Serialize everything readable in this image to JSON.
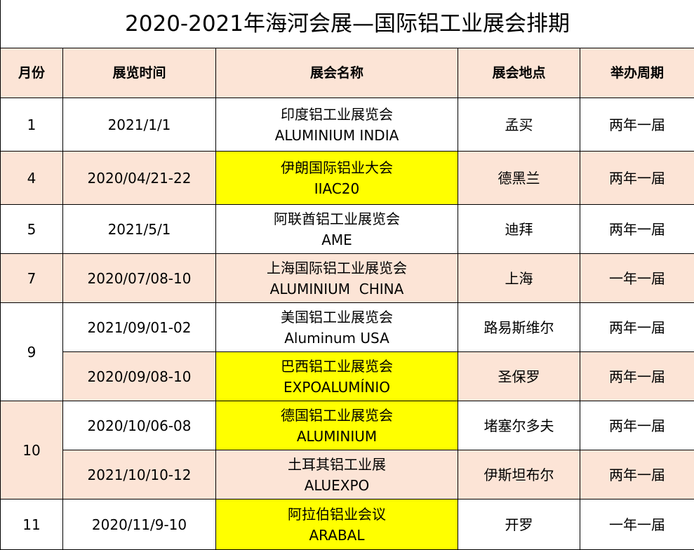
{
  "title": "2020-2021年海河会展—国际铝工业展会排期",
  "headers": [
    "月份",
    "展览时间",
    "展会名称",
    "展会地点",
    "举办周期"
  ],
  "colors": {
    "header_bg": "#fce4d6",
    "alt_row_bg": "#fce4d6",
    "highlight": "#ffff00"
  },
  "rows": [
    {
      "month": "1",
      "month_span": 1,
      "date": "2021/1/1",
      "name_cn": "印度铝工业展览会",
      "name_en": "ALUMINIUM INDIA",
      "location": "孟买",
      "cycle": "两年一届",
      "shade": "white",
      "highlight": false,
      "height": 76
    },
    {
      "month": "4",
      "month_span": 1,
      "date": "2020/04/21-22",
      "name_cn": "伊朗国际铝业大会",
      "name_en": "IIAC20",
      "location": "德黑兰",
      "cycle": "两年一届",
      "shade": "peach",
      "highlight": true,
      "height": 76
    },
    {
      "month": "5",
      "month_span": 1,
      "date": "2021/5/1",
      "name_cn": "阿联酋铝工业展览会",
      "name_en": "AME",
      "location": "迪拜",
      "cycle": "两年一届",
      "shade": "white",
      "highlight": false,
      "height": 70
    },
    {
      "month": "7",
      "month_span": 1,
      "date": "2020/07/08-10",
      "name_cn": "上海国际铝工业展览会",
      "name_en": "ALUMINIUM  CHINA",
      "location": "上海",
      "cycle": "一年一届",
      "shade": "peach",
      "highlight": false,
      "height": 70
    },
    {
      "month": "9",
      "month_span": 2,
      "month_shade": "white",
      "date": "2021/09/01-02",
      "name_cn": "美国铝工业展览会",
      "name_en": "Aluminum USA",
      "location": "路易斯维尔",
      "cycle": "两年一届",
      "shade": "white",
      "highlight": false,
      "height": 70
    },
    {
      "month": null,
      "date": "2020/09/08-10",
      "name_cn": "巴西铝工业展览会",
      "name_en": "EXPOALUMÍNIO",
      "location": "圣保罗",
      "cycle": "两年一届",
      "shade": "peach",
      "highlight": true,
      "height": 70
    },
    {
      "month": "10",
      "month_span": 2,
      "month_shade": "peach",
      "date": "2020/10/06-08",
      "name_cn": "德国铝工业展览会",
      "name_en": "ALUMINIUM",
      "location": "堵塞尔多夫",
      "cycle": "两年一届",
      "shade": "white",
      "highlight": true,
      "height": 70
    },
    {
      "month": null,
      "date": "2021/10/10-12",
      "name_cn": "土耳其铝工业展",
      "name_en": "ALUEXPO",
      "location": "伊斯坦布尔",
      "cycle": "两年一届",
      "shade": "peach",
      "highlight": false,
      "height": 70
    },
    {
      "month": "11",
      "month_span": 1,
      "date": "2020/11/9-10",
      "name_cn": "阿拉伯铝业会议",
      "name_en": "ARABAL",
      "location": "开罗",
      "cycle": "一年一届",
      "shade": "white",
      "highlight": true,
      "height": 72
    }
  ]
}
